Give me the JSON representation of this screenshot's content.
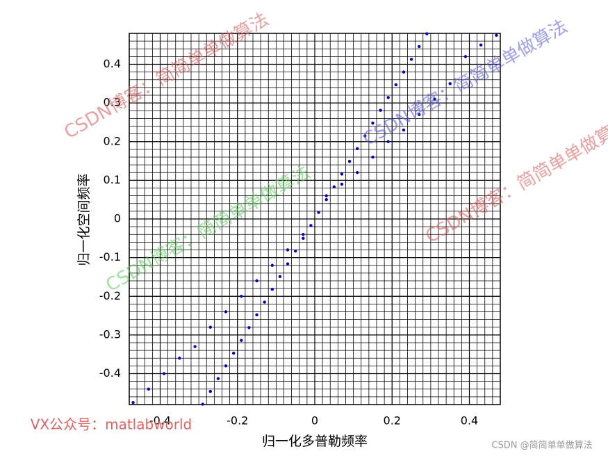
{
  "chart_data": {
    "type": "scatter",
    "xlabel": "归一化多普勒频率",
    "ylabel": "归一化空间频率",
    "xlim": [
      -0.48,
      0.48
    ],
    "ylim": [
      -0.48,
      0.48
    ],
    "xticks": [
      -0.4,
      -0.2,
      0,
      0.2,
      0.4
    ],
    "yticks": [
      -0.4,
      -0.3,
      -0.2,
      -0.1,
      0,
      0.1,
      0.2,
      0.3,
      0.4
    ],
    "grid": true,
    "minor_grid": true,
    "series": [
      {
        "color": "#0000cc",
        "x": [
          -0.29,
          -0.27,
          -0.25,
          -0.23,
          -0.21,
          -0.19,
          -0.17,
          -0.15,
          -0.13,
          -0.11,
          -0.09,
          -0.07,
          -0.05,
          -0.03,
          -0.01,
          0.01,
          0.03,
          0.05,
          0.07,
          0.09,
          0.11,
          0.13,
          0.15,
          0.17,
          0.19,
          0.21,
          0.23,
          0.25,
          0.27,
          0.29
        ],
        "values": [
          -0.479,
          -0.446,
          -0.413,
          -0.38,
          -0.347,
          -0.314,
          -0.281,
          -0.248,
          -0.215,
          -0.182,
          -0.149,
          -0.116,
          -0.083,
          -0.05,
          -0.017,
          0.017,
          0.05,
          0.083,
          0.116,
          0.149,
          0.182,
          0.215,
          0.248,
          0.281,
          0.314,
          0.347,
          0.38,
          0.413,
          0.446,
          0.479
        ]
      },
      {
        "color": "#0000cc",
        "x": [
          -0.47,
          -0.43,
          -0.39,
          -0.35,
          -0.31,
          -0.27,
          -0.23,
          -0.19,
          -0.15,
          -0.11,
          -0.07,
          -0.03,
          0.03,
          0.07,
          0.11,
          0.15,
          0.19,
          0.23,
          0.27,
          0.31,
          0.35,
          0.39,
          0.43,
          0.47
        ],
        "values": [
          -0.475,
          -0.44,
          -0.4,
          -0.36,
          -0.33,
          -0.28,
          -0.24,
          -0.2,
          -0.16,
          -0.12,
          -0.08,
          -0.04,
          0.06,
          0.09,
          0.12,
          0.16,
          0.2,
          0.23,
          0.27,
          0.31,
          0.35,
          0.42,
          0.45,
          0.475
        ]
      }
    ],
    "annotations": [
      "CSDN博客：简简单单做算法",
      "CSDN博客：简简单单做算法",
      "CSDN博客：简简单单做算法",
      "CSDN博客：简简单单做算法",
      "VX公众号：matlabworld",
      "CSDN @简简单单做算法"
    ]
  }
}
